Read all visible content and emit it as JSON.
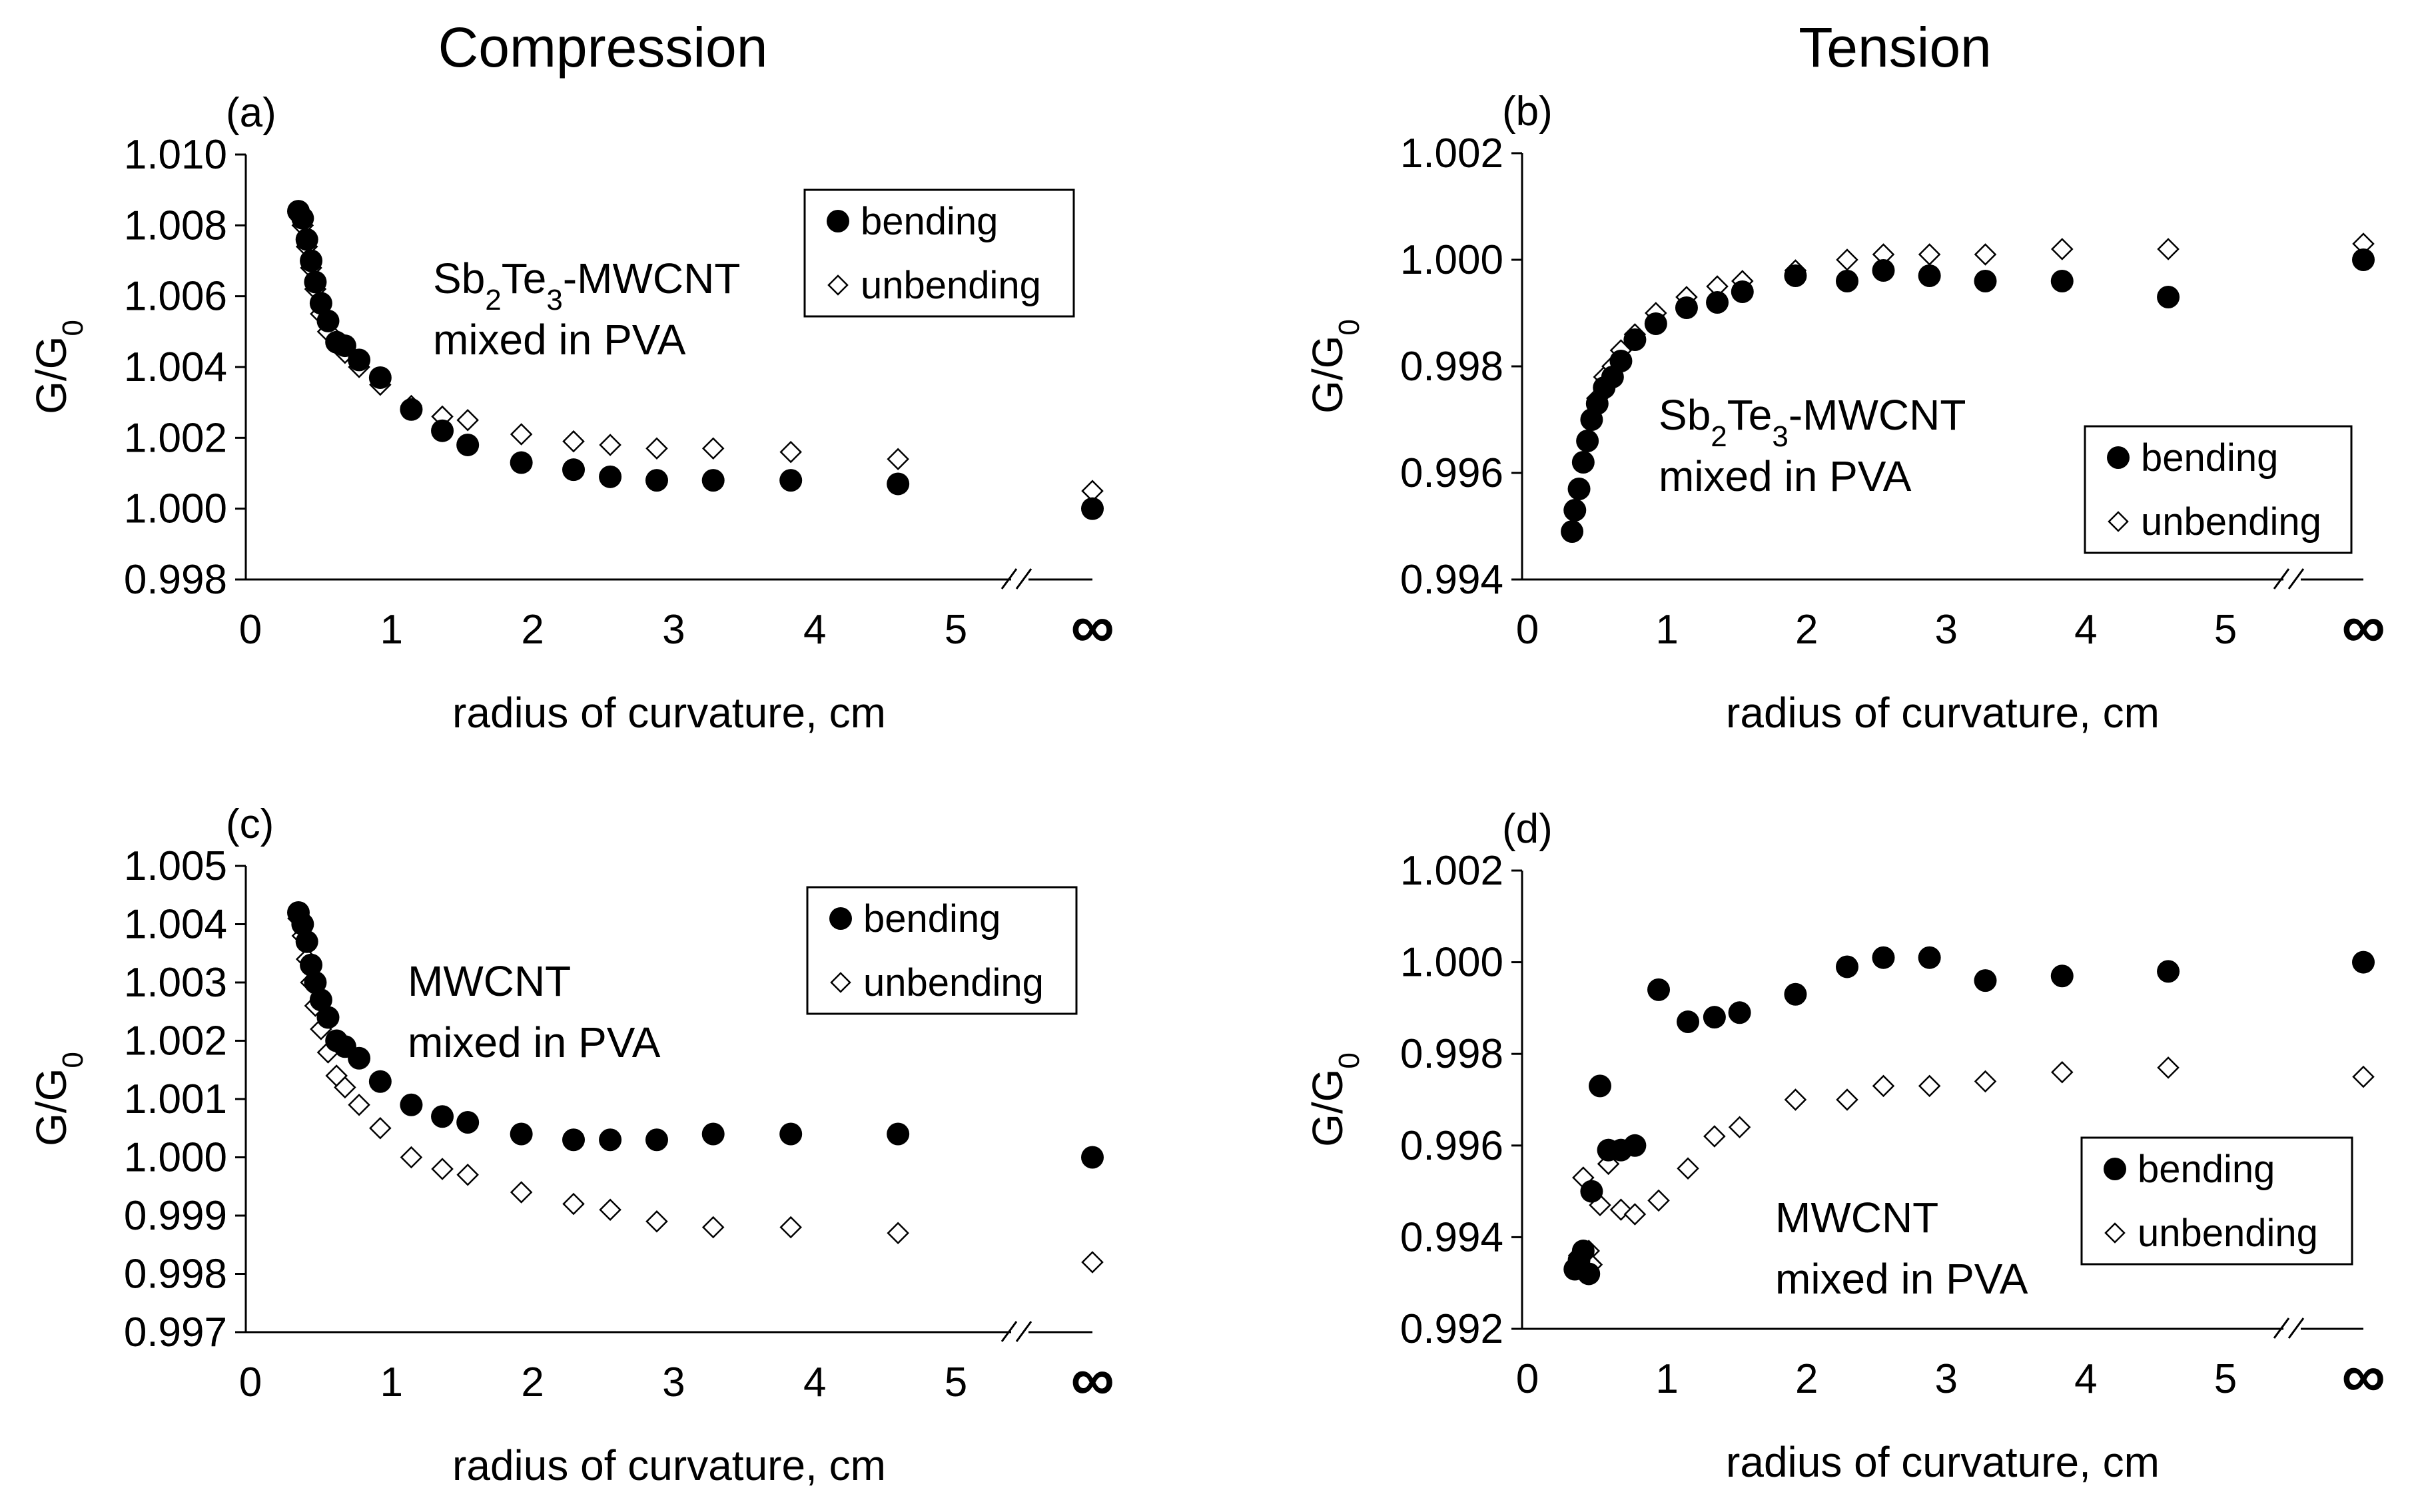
{
  "columns": {
    "left": "Compression",
    "right": "Tension"
  },
  "chart_data": [
    {
      "id": "a",
      "type": "scatter",
      "panel_label": "(a)",
      "title": "Compression",
      "xlabel": "radius of curvature, cm",
      "ylabel": "G/G0",
      "ylabel_main": "G/G",
      "ylabel_sub": "0",
      "xlim": [
        0,
        6
      ],
      "ylim": [
        0.998,
        1.01
      ],
      "xticks": [
        "0",
        "1",
        "2",
        "3",
        "4",
        "5",
        "∞"
      ],
      "yticks": [
        "0.998",
        "1.000",
        "1.002",
        "1.004",
        "1.006",
        "1.008",
        "1.010"
      ],
      "annotation": [
        "Sb2Te3-MWCNT",
        "mixed in PVA"
      ],
      "annotation_rich": [
        [
          "Sb",
          "2",
          "Te",
          "3",
          "-MWCNT"
        ],
        [
          "mixed in PVA"
        ]
      ],
      "legend": [
        "bending",
        "unbending"
      ],
      "series": [
        {
          "name": "bending",
          "marker": "filled-circle",
          "x": [
            0.34,
            0.37,
            0.4,
            0.43,
            0.46,
            0.5,
            0.55,
            0.61,
            0.67,
            0.77,
            0.92,
            1.14,
            1.36,
            1.54,
            1.92,
            2.29,
            2.55,
            2.88,
            3.28,
            3.83,
            4.59,
            6.0
          ],
          "y": [
            1.0084,
            1.0082,
            1.0076,
            1.007,
            1.0064,
            1.0058,
            1.0053,
            1.0047,
            1.0046,
            1.0042,
            1.0037,
            1.0028,
            1.0022,
            1.0018,
            1.0013,
            1.0011,
            1.0009,
            1.0008,
            1.0008,
            1.0008,
            1.0007,
            1.0
          ]
        },
        {
          "name": "unbending",
          "marker": "open-diamond",
          "x": [
            0.34,
            0.37,
            0.4,
            0.43,
            0.46,
            0.5,
            0.55,
            0.61,
            0.67,
            0.77,
            0.92,
            1.14,
            1.36,
            1.54,
            1.92,
            2.29,
            2.55,
            2.88,
            3.28,
            3.83,
            4.59,
            6.0
          ],
          "y": [
            1.0084,
            1.008,
            1.0074,
            1.0068,
            1.0062,
            1.0055,
            1.005,
            1.0047,
            1.0044,
            1.004,
            1.0035,
            1.0029,
            1.0026,
            1.0025,
            1.0021,
            1.0019,
            1.0018,
            1.0017,
            1.0017,
            1.0016,
            1.0014,
            1.0005
          ]
        }
      ]
    },
    {
      "id": "b",
      "type": "scatter",
      "panel_label": "(b)",
      "title": "Tension",
      "xlabel": "radius of curvature, cm",
      "ylabel": "G/G0",
      "ylabel_main": "G/G",
      "ylabel_sub": "0",
      "xlim": [
        0,
        6
      ],
      "ylim": [
        0.994,
        1.002
      ],
      "xticks": [
        "0",
        "1",
        "2",
        "3",
        "4",
        "5",
        "∞"
      ],
      "yticks": [
        "0.994",
        "0.996",
        "0.998",
        "1.000",
        "1.002"
      ],
      "annotation": [
        "Sb2Te3-MWCNT",
        "mixed in PVA"
      ],
      "annotation_rich": [
        [
          "Sb",
          "2",
          "Te",
          "3",
          "-MWCNT"
        ],
        [
          "mixed in PVA"
        ]
      ],
      "legend": [
        "bending",
        "unbending"
      ],
      "series": [
        {
          "name": "bending",
          "marker": "filled-circle",
          "x": [
            0.32,
            0.34,
            0.37,
            0.4,
            0.43,
            0.46,
            0.5,
            0.55,
            0.61,
            0.67,
            0.77,
            0.92,
            1.14,
            1.36,
            1.54,
            1.92,
            2.29,
            2.55,
            2.88,
            3.28,
            3.83,
            4.59,
            6.0
          ],
          "y": [
            0.9949,
            0.9953,
            0.9957,
            0.9962,
            0.9966,
            0.997,
            0.9973,
            0.9976,
            0.9978,
            0.9981,
            0.9985,
            0.9988,
            0.9991,
            0.9992,
            0.9994,
            0.9997,
            0.9996,
            0.9998,
            0.9997,
            0.9996,
            0.9996,
            0.9993,
            1.0
          ]
        },
        {
          "name": "unbending",
          "marker": "open-diamond",
          "x": [
            0.32,
            0.34,
            0.37,
            0.4,
            0.43,
            0.46,
            0.5,
            0.55,
            0.61,
            0.67,
            0.77,
            0.92,
            1.14,
            1.36,
            1.54,
            1.92,
            2.29,
            2.55,
            2.88,
            3.28,
            3.83,
            4.59,
            6.0
          ],
          "y": [
            0.9949,
            0.9953,
            0.9957,
            0.9962,
            0.9966,
            0.997,
            0.9974,
            0.9978,
            0.998,
            0.9983,
            0.9986,
            0.999,
            0.9993,
            0.9995,
            0.9996,
            0.9998,
            1.0,
            1.0001,
            1.0001,
            1.0001,
            1.0002,
            1.0002,
            1.0003
          ]
        }
      ]
    },
    {
      "id": "c",
      "type": "scatter",
      "panel_label": "(c)",
      "title": "Compression",
      "xlabel": "radius of curvature, cm",
      "ylabel": "G/G0",
      "ylabel_main": "G/G",
      "ylabel_sub": "0",
      "xlim": [
        0,
        6
      ],
      "ylim": [
        0.997,
        1.005
      ],
      "xticks": [
        "0",
        "1",
        "2",
        "3",
        "4",
        "5",
        "∞"
      ],
      "yticks": [
        "0.997",
        "0.998",
        "0.999",
        "1.000",
        "1.001",
        "1.002",
        "1.003",
        "1.004",
        "1.005"
      ],
      "annotation": [
        "MWCNT",
        "mixed in PVA"
      ],
      "annotation_rich": [
        [
          "MWCNT"
        ],
        [
          "mixed in PVA"
        ]
      ],
      "legend": [
        "bending",
        "unbending"
      ],
      "series": [
        {
          "name": "bending",
          "marker": "filled-circle",
          "x": [
            0.34,
            0.37,
            0.4,
            0.43,
            0.46,
            0.5,
            0.55,
            0.61,
            0.67,
            0.77,
            0.92,
            1.14,
            1.36,
            1.54,
            1.92,
            2.29,
            2.55,
            2.88,
            3.28,
            3.83,
            4.59,
            6.0
          ],
          "y": [
            1.0042,
            1.004,
            1.0037,
            1.0033,
            1.003,
            1.0027,
            1.0024,
            1.002,
            1.0019,
            1.0017,
            1.0013,
            1.0009,
            1.0007,
            1.0006,
            1.0004,
            1.0003,
            1.0003,
            1.0003,
            1.0004,
            1.0004,
            1.0004,
            1.0
          ]
        },
        {
          "name": "unbending",
          "marker": "open-diamond",
          "x": [
            0.34,
            0.37,
            0.4,
            0.43,
            0.46,
            0.5,
            0.55,
            0.61,
            0.67,
            0.77,
            0.92,
            1.14,
            1.36,
            1.54,
            1.92,
            2.29,
            2.55,
            2.88,
            3.28,
            3.83,
            4.59,
            6.0
          ],
          "y": [
            1.0041,
            1.0038,
            1.0034,
            1.003,
            1.0026,
            1.0022,
            1.0018,
            1.0014,
            1.0012,
            1.0009,
            1.0005,
            1.0,
            0.9998,
            0.9997,
            0.9994,
            0.9992,
            0.9991,
            0.9989,
            0.9988,
            0.9988,
            0.9987,
            0.9982
          ]
        }
      ]
    },
    {
      "id": "d",
      "type": "scatter",
      "panel_label": "(d)",
      "title": "Tension",
      "xlabel": "radius of curvature, cm",
      "ylabel": "G/G0",
      "ylabel_main": "G/G",
      "ylabel_sub": "0",
      "xlim": [
        0,
        6
      ],
      "ylim": [
        0.992,
        1.002
      ],
      "xticks": [
        "0",
        "1",
        "2",
        "3",
        "4",
        "5",
        "∞"
      ],
      "yticks": [
        "0.992",
        "0.994",
        "0.996",
        "0.998",
        "1.000",
        "1.002"
      ],
      "annotation": [
        "MWCNT",
        "mixed in PVA"
      ],
      "annotation_rich": [
        [
          "MWCNT"
        ],
        [
          "mixed in PVA"
        ]
      ],
      "legend": [
        "bending",
        "unbending"
      ],
      "series": [
        {
          "name": "bending",
          "marker": "filled-circle",
          "x": [
            0.34,
            0.37,
            0.4,
            0.44,
            0.46,
            0.52,
            0.58,
            0.67,
            0.77,
            0.94,
            1.15,
            1.34,
            1.52,
            1.92,
            2.29,
            2.55,
            2.88,
            3.28,
            3.83,
            4.59,
            6.0
          ],
          "y": [
            0.9933,
            0.9935,
            0.9937,
            0.9932,
            0.995,
            0.9973,
            0.9959,
            0.9959,
            0.996,
            0.9994,
            0.9987,
            0.9988,
            0.9989,
            0.9993,
            0.9999,
            1.0001,
            1.0001,
            0.9996,
            0.9997,
            0.9998,
            1.0
          ]
        },
        {
          "name": "unbending",
          "marker": "open-diamond",
          "x": [
            0.34,
            0.37,
            0.4,
            0.44,
            0.46,
            0.52,
            0.58,
            0.67,
            0.77,
            0.94,
            1.15,
            1.34,
            1.52,
            1.92,
            2.29,
            2.55,
            2.88,
            3.28,
            3.83,
            4.59,
            6.0
          ],
          "y": [
            0.9933,
            0.9936,
            0.9953,
            0.9937,
            0.9934,
            0.9947,
            0.9956,
            0.9946,
            0.9945,
            0.9948,
            0.9955,
            0.9962,
            0.9964,
            0.997,
            0.997,
            0.9973,
            0.9973,
            0.9974,
            0.9976,
            0.9977,
            0.9975
          ]
        }
      ]
    }
  ]
}
